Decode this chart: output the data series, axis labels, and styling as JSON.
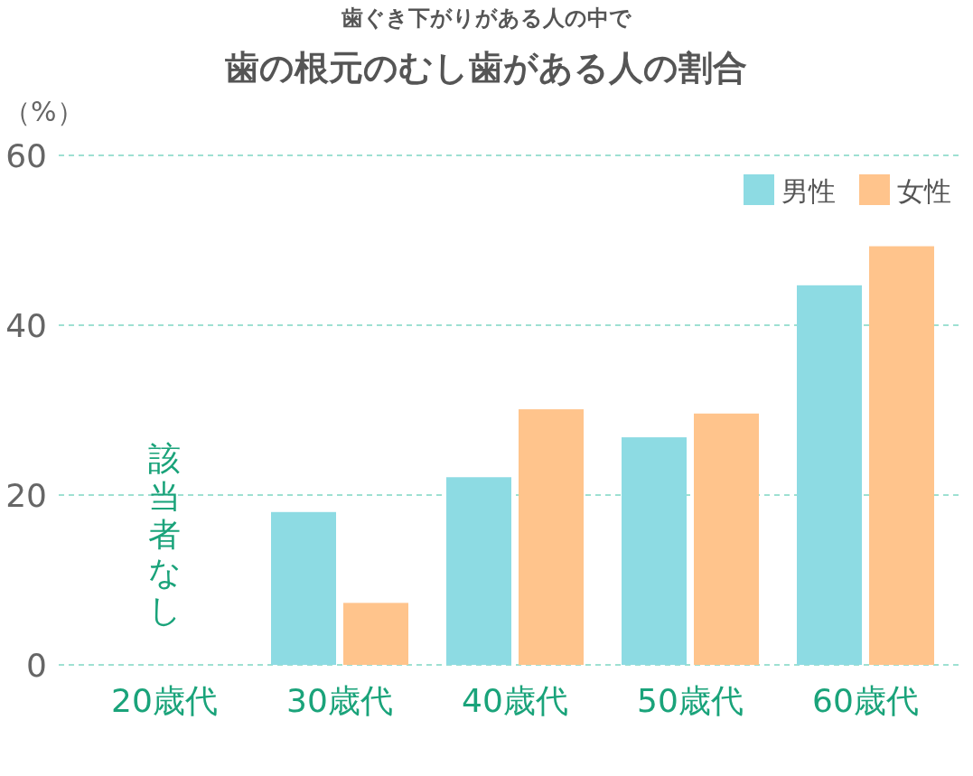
{
  "chart_data": {
    "type": "bar",
    "subtitle": "歯ぐき下がりがある人の中で",
    "title": "歯の根元のむし歯がある人の割合",
    "ylabel": "（%）",
    "categories": [
      "20歳代",
      "30歳代",
      "40歳代",
      "50歳代",
      "60歳代"
    ],
    "series": [
      {
        "name": "男性",
        "color": "#8ddbe3",
        "values": [
          null,
          18,
          22.1,
          26.8,
          44.7
        ]
      },
      {
        "name": "女性",
        "color": "#ffc48c",
        "values": [
          null,
          7.3,
          30.1,
          29.6,
          49.3
        ]
      }
    ],
    "ylim": [
      0,
      60
    ],
    "yticks": [
      0,
      20,
      40,
      60
    ],
    "grid": "y",
    "legend": "top right",
    "annotations": [
      "該当者なし"
    ]
  }
}
